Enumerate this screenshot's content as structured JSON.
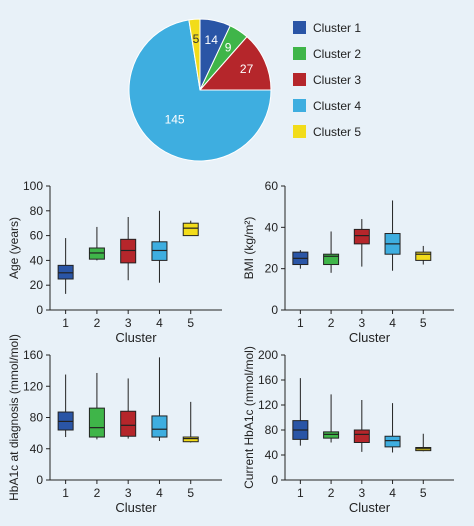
{
  "colors": {
    "background": "#e8f1f8",
    "cluster1": "#2a55a6",
    "cluster2": "#3fb549",
    "cluster3": "#b5262b",
    "cluster4": "#3eaee0",
    "cluster5": "#f2dc1a"
  },
  "chart_data": [
    {
      "type": "pie",
      "categories": [
        "Cluster 1",
        "Cluster 2",
        "Cluster 3",
        "Cluster 4",
        "Cluster 5"
      ],
      "values": [
        14,
        9,
        27,
        145,
        5
      ],
      "data_labels": [
        "14",
        "9",
        "27",
        "145",
        "5"
      ],
      "legend": "right"
    },
    {
      "type": "boxplot",
      "xlabel": "Cluster",
      "ylabel": "Age (years)",
      "ylim": [
        0,
        100
      ],
      "yticks": [
        "0",
        "20",
        "40",
        "60",
        "80",
        "100"
      ],
      "categories": [
        "1",
        "2",
        "3",
        "4",
        "5"
      ],
      "boxes": [
        {
          "cluster": 1,
          "min": 13,
          "q1": 25,
          "median": 30,
          "q3": 36,
          "max": 58
        },
        {
          "cluster": 2,
          "min": 40,
          "q1": 41,
          "median": 46,
          "q3": 50,
          "max": 67
        },
        {
          "cluster": 3,
          "min": 24,
          "q1": 38,
          "median": 48,
          "q3": 57,
          "max": 75
        },
        {
          "cluster": 4,
          "min": 22,
          "q1": 40,
          "median": 48,
          "q3": 55,
          "max": 80
        },
        {
          "cluster": 5,
          "min": 60,
          "q1": 60,
          "median": 66,
          "q3": 70,
          "max": 72
        }
      ]
    },
    {
      "type": "boxplot",
      "xlabel": "Cluster",
      "ylabel": "BMI (kg/m²)",
      "ylim": [
        0,
        60
      ],
      "yticks": [
        "0",
        "20",
        "40",
        "60"
      ],
      "categories": [
        "1",
        "2",
        "3",
        "4",
        "5"
      ],
      "boxes": [
        {
          "cluster": 1,
          "min": 20,
          "q1": 22,
          "median": 25,
          "q3": 28,
          "max": 29
        },
        {
          "cluster": 2,
          "min": 18,
          "q1": 22,
          "median": 26,
          "q3": 27,
          "max": 38
        },
        {
          "cluster": 3,
          "min": 21,
          "q1": 32,
          "median": 36,
          "q3": 39,
          "max": 44
        },
        {
          "cluster": 4,
          "min": 19,
          "q1": 27,
          "median": 32,
          "q3": 37,
          "max": 53
        },
        {
          "cluster": 5,
          "min": 22,
          "q1": 24,
          "median": 27,
          "q3": 28,
          "max": 31
        }
      ]
    },
    {
      "type": "boxplot",
      "xlabel": "Cluster",
      "ylabel": "HbA1c at diagnosis (mmol/mol)",
      "ylim": [
        0,
        160
      ],
      "yticks": [
        "0",
        "40",
        "80",
        "120",
        "160"
      ],
      "categories": [
        "1",
        "2",
        "3",
        "4",
        "5"
      ],
      "boxes": [
        {
          "cluster": 1,
          "min": 55,
          "q1": 64,
          "median": 75,
          "q3": 87,
          "max": 135
        },
        {
          "cluster": 2,
          "min": 52,
          "q1": 55,
          "median": 67,
          "q3": 92,
          "max": 137
        },
        {
          "cluster": 3,
          "min": 53,
          "q1": 56,
          "median": 70,
          "q3": 88,
          "max": 130
        },
        {
          "cluster": 4,
          "min": 50,
          "q1": 55,
          "median": 65,
          "q3": 82,
          "max": 157
        },
        {
          "cluster": 5,
          "min": 48,
          "q1": 49,
          "median": 53,
          "q3": 55,
          "max": 100
        }
      ]
    },
    {
      "type": "boxplot",
      "xlabel": "Cluster",
      "ylabel": "Current HbA1c (mmol/mol)",
      "ylim": [
        0,
        200
      ],
      "yticks": [
        "0",
        "40",
        "80",
        "120",
        "160",
        "200"
      ],
      "categories": [
        "1",
        "2",
        "3",
        "4",
        "5"
      ],
      "boxes": [
        {
          "cluster": 1,
          "min": 55,
          "q1": 65,
          "median": 80,
          "q3": 95,
          "max": 163
        },
        {
          "cluster": 2,
          "min": 60,
          "q1": 67,
          "median": 73,
          "q3": 77,
          "max": 137
        },
        {
          "cluster": 3,
          "min": 45,
          "q1": 60,
          "median": 73,
          "q3": 80,
          "max": 128
        },
        {
          "cluster": 4,
          "min": 44,
          "q1": 53,
          "median": 63,
          "q3": 70,
          "max": 123
        },
        {
          "cluster": 5,
          "min": 46,
          "q1": 47,
          "median": 50,
          "q3": 52,
          "max": 74
        }
      ]
    }
  ]
}
